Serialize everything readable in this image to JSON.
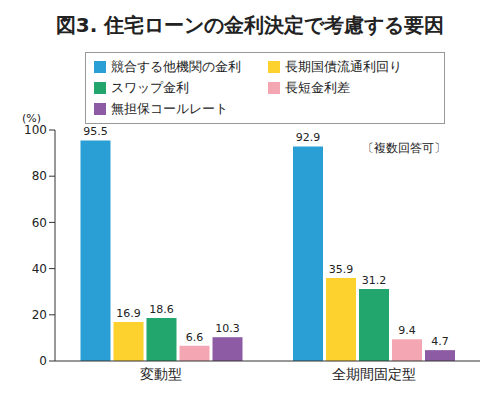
{
  "chart_data": {
    "type": "bar",
    "title": "図3. 住宅ローンの金利決定で考慮する要因",
    "categories": [
      "変動型",
      "全期間固定型"
    ],
    "series": [
      {
        "name": "競合する他機関の金利",
        "color": "#2a9fd6",
        "values": [
          95.5,
          92.9
        ]
      },
      {
        "name": "長期国債流通利回り",
        "color": "#fdd22e",
        "values": [
          16.9,
          35.9
        ]
      },
      {
        "name": "スワップ金利",
        "color": "#23a56e",
        "values": [
          18.6,
          31.2
        ]
      },
      {
        "name": "長短金利差",
        "color": "#f4a7b2",
        "values": [
          6.6,
          9.4
        ]
      },
      {
        "name": "無担保コールレート",
        "color": "#8c5ba3",
        "values": [
          10.3,
          4.7
        ]
      }
    ],
    "y_label": "(%)",
    "annotation": "〔複数回答可〕",
    "ylim": [
      0,
      100
    ],
    "yticks": [
      0,
      20,
      40,
      60,
      80,
      100
    ],
    "grid": false,
    "legend": "top",
    "data_labels": true
  }
}
